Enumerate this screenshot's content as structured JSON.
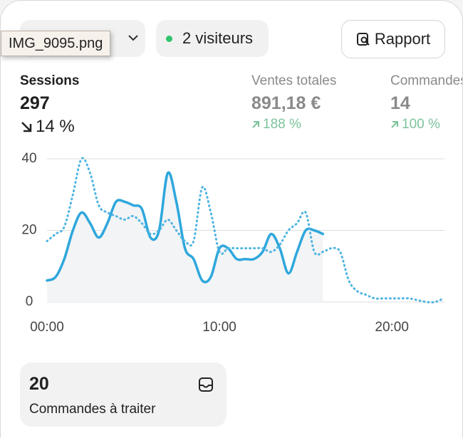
{
  "header": {
    "tooltip": "IMG_9095.png",
    "visitors_pill": "2 visiteurs",
    "report_button": "Rapport"
  },
  "metrics": [
    {
      "label": "Sessions",
      "value": "297",
      "change": "14 %"
    },
    {
      "label": "Ventes totales",
      "value": "891,18 €",
      "change": "188 %"
    },
    {
      "label": "Commandes",
      "value": "14",
      "change": "100 %"
    }
  ],
  "chart_data": {
    "type": "line",
    "x": [
      0,
      0.5,
      1,
      1.5,
      2,
      2.5,
      3,
      3.5,
      4,
      4.5,
      5,
      5.5,
      6,
      6.5,
      7,
      7.5,
      8,
      8.5,
      9,
      9.5,
      10,
      10.5,
      11,
      11.5,
      12,
      12.5,
      13,
      13.5,
      14,
      14.5,
      15,
      15.5,
      16,
      16.5,
      17,
      17.5,
      18,
      18.5,
      19,
      19.5,
      20,
      20.5,
      21,
      21.5,
      22,
      22.5,
      23
    ],
    "series": [
      {
        "color": "#2ea7dc",
        "style": "solid",
        "values": [
          6,
          7,
          12,
          20,
          25,
          22,
          18,
          22,
          28,
          28,
          27,
          26,
          18,
          20,
          36,
          28,
          15,
          12,
          6,
          7,
          15,
          15,
          12,
          12,
          12,
          14,
          19,
          15,
          8,
          14,
          20,
          20,
          19,
          null,
          null,
          null,
          null,
          null,
          null,
          null,
          null,
          null,
          null,
          null,
          null,
          null,
          null
        ]
      },
      {
        "color": "#4fb4e2",
        "style": "dotted",
        "values": [
          17,
          19,
          21,
          30,
          40,
          36,
          27,
          25,
          24,
          23,
          24,
          22,
          19,
          20,
          23,
          20,
          17,
          17,
          32,
          25,
          14,
          15,
          15,
          15,
          15,
          15,
          14,
          16,
          20,
          22,
          25,
          14,
          14,
          15,
          14,
          6,
          3,
          2,
          1,
          1,
          1,
          1,
          1,
          0.5,
          0,
          0,
          1
        ]
      }
    ],
    "xlim": [
      0,
      23.05
    ],
    "ylim": [
      0,
      40
    ],
    "xticks": [
      {
        "value": 0,
        "label": "00:00"
      },
      {
        "value": 10,
        "label": "10:00"
      },
      {
        "value": 20,
        "label": "20:00"
      }
    ],
    "yticks": [
      0,
      20,
      40
    ],
    "grid": true
  },
  "card": {
    "value": "20",
    "label": "Commandes à traiter"
  }
}
